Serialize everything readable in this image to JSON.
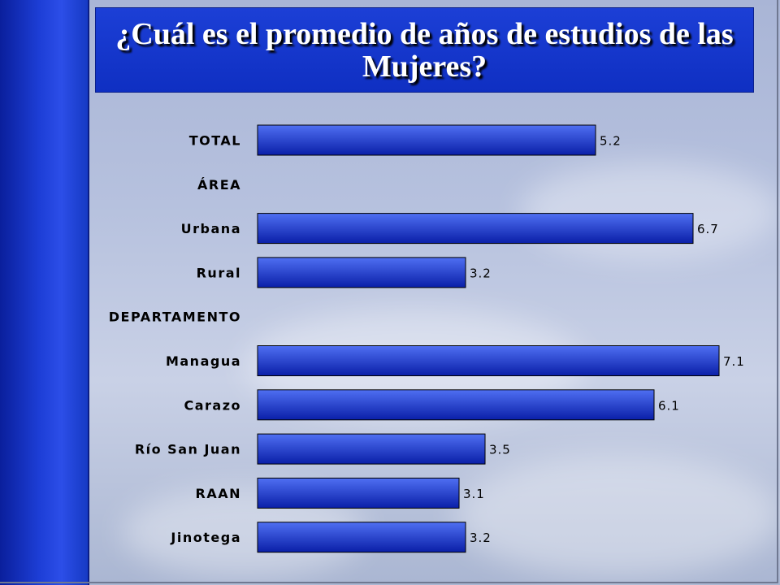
{
  "title": "¿Cuál es el promedio de años de estudios de las Mujeres?",
  "colors": {
    "bar_light": "#4f6ff2",
    "bar_dark": "#0a1fa8",
    "bar_border": "#000000"
  },
  "chart_data": {
    "type": "bar",
    "orientation": "horizontal",
    "xlim": [
      0,
      7.1
    ],
    "grid": false,
    "categories": [
      "TOTAL",
      "ÁREA",
      "Urbana",
      "Rural",
      "DEPARTAMENTO",
      "Managua",
      "Carazo",
      "Río San Juan",
      "RAAN",
      "Jinotega"
    ],
    "values": [
      5.2,
      null,
      6.7,
      3.2,
      null,
      7.1,
      6.1,
      3.5,
      3.1,
      3.2
    ],
    "value_labels": [
      "5.2",
      "",
      "6.7",
      "3.2",
      "",
      "7.1",
      "6.1",
      "3.5",
      "3.1",
      "3.2"
    ]
  }
}
